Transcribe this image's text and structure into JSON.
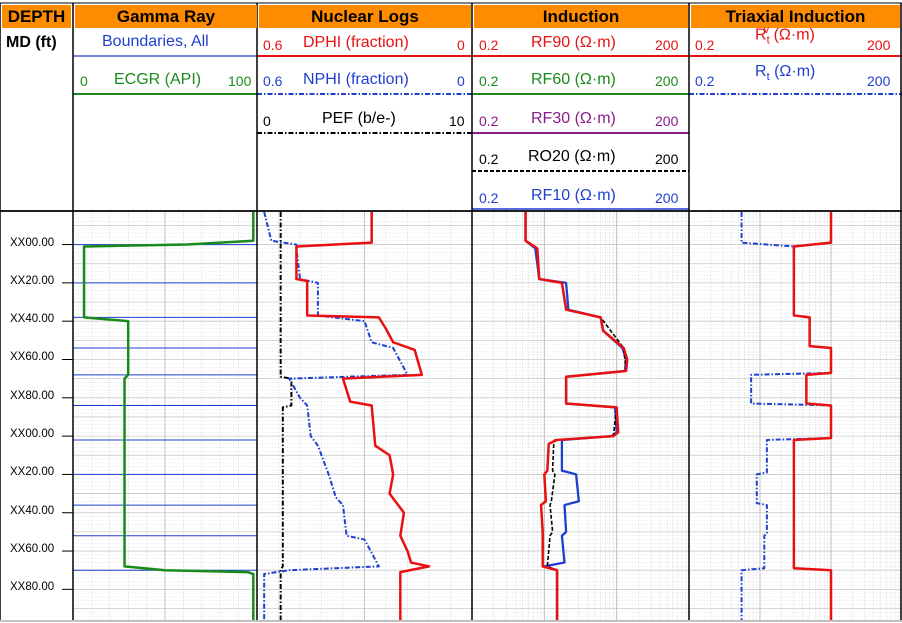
{
  "depth_header": {
    "title": "DEPTH",
    "unit": "MD (ft)"
  },
  "tracks": [
    {
      "title": "Gamma Ray"
    },
    {
      "title": "Nuclear Logs"
    },
    {
      "title": "Induction"
    },
    {
      "title": "Triaxial Induction"
    }
  ],
  "curve_headers": {
    "boundaries": {
      "name": "Boundaries, All",
      "color": "#1F3FD0"
    },
    "ecgr": {
      "name": "ECGR (API)",
      "min": "0",
      "max": "100",
      "color": "#1A8A1A"
    },
    "dphi": {
      "name": "DPHI (fraction)",
      "min": "0.6",
      "max": "0",
      "color": "#E81010"
    },
    "nphi": {
      "name": "NPHI (fraction)",
      "min": "0.6",
      "max": "0",
      "color": "#1F3FD0"
    },
    "pef": {
      "name": "PEF (b/e-)",
      "min": "0",
      "max": "10",
      "color": "#000000"
    },
    "rf90": {
      "name": "RF90 (Ω·m)",
      "min": "0.2",
      "max": "200",
      "color": "#E81010"
    },
    "rf60": {
      "name": "RF60 (Ω·m)",
      "min": "0.2",
      "max": "200",
      "color": "#1A8A1A"
    },
    "rf30": {
      "name": "RF30 (Ω·m)",
      "min": "0.2",
      "max": "200",
      "color": "#8A1A8A"
    },
    "ro20": {
      "name": "RO20 (Ω·m)",
      "min": "0.2",
      "max": "200",
      "color": "#000000"
    },
    "rf10": {
      "name": "RF10 (Ω·m)",
      "min": "0.2",
      "max": "200",
      "color": "#1F3FD0"
    },
    "rtv": {
      "name_main": "R",
      "name_sub": "t",
      "name_sup": "v",
      "name_unit": "(Ω·m)",
      "min": "0.2",
      "max": "200",
      "color": "#E81010"
    },
    "rth": {
      "name_main": "R",
      "name_sub": "t",
      "name_unit": "(Ω·m)",
      "min": "0.2",
      "max": "200",
      "color": "#1F3FD0"
    }
  },
  "depth_ticks": [
    "XX00.00",
    "XX20.00",
    "XX40.00",
    "XX60.00",
    "XX80.00",
    "XX00.00",
    "XX20.00",
    "XX40.00",
    "XX60.00",
    "XX80.00"
  ],
  "chart_data": {
    "type": "well-log",
    "depth": {
      "min": -17,
      "max": 196,
      "ticks": [
        0,
        20,
        40,
        60,
        80,
        100,
        120,
        140,
        160,
        180
      ]
    },
    "boundaries": [
      0,
      20,
      38,
      54,
      68,
      84,
      102,
      120,
      136,
      152,
      170
    ],
    "gamma": {
      "ECGR": {
        "range": [
          0,
          100
        ],
        "color": "#1A8A1A",
        "points": [
          [
            -17,
            98
          ],
          [
            -2,
            98
          ],
          [
            0,
            62
          ],
          [
            1,
            6
          ],
          [
            38,
            6
          ],
          [
            40,
            30
          ],
          [
            68,
            30
          ],
          [
            70,
            28
          ],
          [
            168,
            28
          ],
          [
            170,
            50
          ],
          [
            171,
            95
          ],
          [
            172,
            98
          ],
          [
            196,
            98
          ]
        ]
      }
    },
    "nuclear": {
      "DPHI": {
        "range": [
          0.6,
          0
        ],
        "color": "#E81010",
        "points": [
          [
            -17,
            0.28
          ],
          [
            -1,
            0.28
          ],
          [
            1,
            0.49
          ],
          [
            18,
            0.49
          ],
          [
            19,
            0.46
          ],
          [
            37,
            0.46
          ],
          [
            38,
            0.26
          ],
          [
            44,
            0.24
          ],
          [
            51,
            0.22
          ],
          [
            55,
            0.16
          ],
          [
            68,
            0.14
          ],
          [
            70,
            0.36
          ],
          [
            82,
            0.34
          ],
          [
            84,
            0.28
          ],
          [
            105,
            0.27
          ],
          [
            110,
            0.23
          ],
          [
            120,
            0.22
          ],
          [
            130,
            0.23
          ],
          [
            140,
            0.19
          ],
          [
            152,
            0.2
          ],
          [
            160,
            0.18
          ],
          [
            166,
            0.17
          ],
          [
            168,
            0.12
          ],
          [
            171,
            0.2
          ],
          [
            196,
            0.2
          ]
        ]
      },
      "NPHI": {
        "range": [
          0.6,
          0
        ],
        "color": "#1F3FD0",
        "points": [
          [
            -17,
            0.58
          ],
          [
            -2,
            0.56
          ],
          [
            0,
            0.49
          ],
          [
            2,
            0.49
          ],
          [
            18,
            0.48
          ],
          [
            20,
            0.43
          ],
          [
            37,
            0.43
          ],
          [
            40,
            0.3
          ],
          [
            51,
            0.28
          ],
          [
            54,
            0.22
          ],
          [
            68,
            0.18
          ],
          [
            70,
            0.51
          ],
          [
            80,
            0.48
          ],
          [
            84,
            0.46
          ],
          [
            100,
            0.45
          ],
          [
            105,
            0.43
          ],
          [
            120,
            0.4
          ],
          [
            132,
            0.38
          ],
          [
            136,
            0.36
          ],
          [
            152,
            0.35
          ],
          [
            154,
            0.3
          ],
          [
            168,
            0.26
          ],
          [
            170,
            0.51
          ],
          [
            172,
            0.58
          ],
          [
            196,
            0.58
          ]
        ]
      },
      "PEF": {
        "range": [
          0,
          10
        ],
        "color": "#000000",
        "points": [
          [
            -17,
            1.1
          ],
          [
            69,
            1.1
          ],
          [
            70,
            1.6
          ],
          [
            84,
            1.6
          ],
          [
            85,
            1.2
          ],
          [
            168,
            1.2
          ],
          [
            170,
            1.1
          ],
          [
            196,
            1.1
          ]
        ]
      }
    },
    "induction": {
      "scale": "log",
      "range": [
        0.2,
        200
      ],
      "RF90": {
        "color": "#E81010",
        "points": [
          [
            -17,
            1.1
          ],
          [
            -2,
            1.1
          ],
          [
            2,
            1.6
          ],
          [
            18,
            1.7
          ],
          [
            20,
            3.5
          ],
          [
            34,
            4
          ],
          [
            38,
            12
          ],
          [
            45,
            13
          ],
          [
            54,
            25
          ],
          [
            60,
            28
          ],
          [
            66,
            27
          ],
          [
            69,
            4
          ],
          [
            83,
            4
          ],
          [
            85,
            20
          ],
          [
            98,
            21
          ],
          [
            100,
            18
          ],
          [
            102,
            3
          ],
          [
            104,
            2.3
          ],
          [
            118,
            2.2
          ],
          [
            120,
            2
          ],
          [
            134,
            2.1
          ],
          [
            136,
            1.8
          ],
          [
            150,
            1.9
          ],
          [
            152,
            1.9
          ],
          [
            168,
            1.9
          ],
          [
            170,
            3
          ],
          [
            196,
            3
          ]
        ]
      },
      "RF60": {
        "color": "#1A8A1A",
        "points": [
          [
            -17,
            1.1
          ],
          [
            -2,
            1.1
          ],
          [
            2,
            1.6
          ],
          [
            18,
            1.7
          ],
          [
            20,
            3.5
          ],
          [
            34,
            4
          ],
          [
            38,
            12
          ],
          [
            45,
            13
          ],
          [
            54,
            25
          ],
          [
            60,
            28
          ],
          [
            66,
            27
          ],
          [
            69,
            4
          ],
          [
            83,
            4
          ],
          [
            85,
            20
          ],
          [
            98,
            21
          ],
          [
            100,
            18
          ],
          [
            102,
            3
          ],
          [
            104,
            2.3
          ],
          [
            118,
            2.2
          ],
          [
            120,
            2
          ],
          [
            134,
            2.1
          ],
          [
            136,
            1.8
          ],
          [
            150,
            1.9
          ],
          [
            152,
            1.9
          ],
          [
            168,
            1.9
          ],
          [
            170,
            3
          ],
          [
            196,
            3
          ]
        ]
      },
      "RF30": {
        "color": "#8A1A8A",
        "points": [
          [
            -17,
            1.1
          ],
          [
            -2,
            1.1
          ],
          [
            2,
            1.6
          ],
          [
            18,
            1.7
          ],
          [
            20,
            3.5
          ],
          [
            34,
            4
          ],
          [
            38,
            12
          ],
          [
            45,
            13
          ],
          [
            54,
            25
          ],
          [
            60,
            28
          ],
          [
            66,
            27
          ],
          [
            69,
            4
          ],
          [
            83,
            4
          ],
          [
            85,
            20
          ],
          [
            98,
            21
          ],
          [
            100,
            18
          ],
          [
            102,
            3
          ],
          [
            104,
            2.3
          ],
          [
            118,
            2.2
          ],
          [
            120,
            2
          ],
          [
            134,
            2.1
          ],
          [
            136,
            1.8
          ],
          [
            150,
            1.9
          ],
          [
            152,
            1.9
          ],
          [
            168,
            1.9
          ],
          [
            170,
            3
          ],
          [
            196,
            3
          ]
        ]
      },
      "RO20": {
        "color": "#000000",
        "points": [
          [
            -17,
            1.1
          ],
          [
            -2,
            1.1
          ],
          [
            2,
            1.6
          ],
          [
            18,
            1.7
          ],
          [
            20,
            3.5
          ],
          [
            34,
            4
          ],
          [
            38,
            12
          ],
          [
            54,
            25
          ],
          [
            66,
            27
          ],
          [
            69,
            4
          ],
          [
            83,
            4
          ],
          [
            85,
            20
          ],
          [
            100,
            18
          ],
          [
            102,
            2.8
          ],
          [
            104,
            2.7
          ],
          [
            118,
            2.6
          ],
          [
            120,
            2.8
          ],
          [
            134,
            2.5
          ],
          [
            136,
            2.4
          ],
          [
            150,
            2.6
          ],
          [
            152,
            2.4
          ],
          [
            168,
            2.2
          ],
          [
            170,
            3
          ],
          [
            196,
            3
          ]
        ]
      },
      "RF10": {
        "color": "#1F3FD0",
        "points": [
          [
            -17,
            1.1
          ],
          [
            -2,
            1.1
          ],
          [
            2,
            1.5
          ],
          [
            18,
            1.7
          ],
          [
            20,
            4
          ],
          [
            34,
            4.3
          ],
          [
            38,
            12
          ],
          [
            45,
            13
          ],
          [
            54,
            24
          ],
          [
            60,
            27
          ],
          [
            66,
            26
          ],
          [
            69,
            4
          ],
          [
            83,
            4
          ],
          [
            85,
            19
          ],
          [
            98,
            20
          ],
          [
            100,
            17
          ],
          [
            102,
            3.5
          ],
          [
            104,
            3.5
          ],
          [
            118,
            3.5
          ],
          [
            120,
            5.5
          ],
          [
            134,
            6
          ],
          [
            136,
            3.8
          ],
          [
            150,
            4
          ],
          [
            152,
            3.5
          ],
          [
            166,
            3.8
          ],
          [
            168,
            2
          ],
          [
            170,
            3
          ],
          [
            196,
            3
          ]
        ]
      }
    },
    "triaxial": {
      "scale": "log",
      "range": [
        0.2,
        200
      ],
      "Rv": {
        "color": "#E81010",
        "points": [
          [
            -17,
            20
          ],
          [
            -1,
            20
          ],
          [
            1,
            6
          ],
          [
            18,
            6
          ],
          [
            20,
            6
          ],
          [
            37,
            6
          ],
          [
            38,
            10
          ],
          [
            53,
            10
          ],
          [
            54,
            20
          ],
          [
            67,
            20
          ],
          [
            68,
            9
          ],
          [
            83,
            9
          ],
          [
            84,
            20
          ],
          [
            101,
            20
          ],
          [
            102,
            6
          ],
          [
            119,
            6
          ],
          [
            120,
            6
          ],
          [
            135,
            6
          ],
          [
            136,
            6
          ],
          [
            151,
            6
          ],
          [
            152,
            6
          ],
          [
            169,
            6
          ],
          [
            170,
            20
          ],
          [
            196,
            20
          ]
        ]
      },
      "Rh": {
        "color": "#1F3FD0",
        "points": [
          [
            -17,
            1.1
          ],
          [
            -1,
            1.1
          ],
          [
            1,
            6
          ],
          [
            18,
            6
          ],
          [
            20,
            6
          ],
          [
            37,
            6
          ],
          [
            38,
            10
          ],
          [
            53,
            10
          ],
          [
            54,
            20
          ],
          [
            67,
            20
          ],
          [
            68,
            1.5
          ],
          [
            83,
            1.5
          ],
          [
            84,
            20
          ],
          [
            101,
            20
          ],
          [
            102,
            2.5
          ],
          [
            119,
            2.5
          ],
          [
            120,
            1.8
          ],
          [
            135,
            1.8
          ],
          [
            136,
            2.5
          ],
          [
            151,
            2.5
          ],
          [
            152,
            2.3
          ],
          [
            169,
            2.3
          ],
          [
            170,
            1.1
          ],
          [
            196,
            1.1
          ]
        ]
      }
    }
  }
}
